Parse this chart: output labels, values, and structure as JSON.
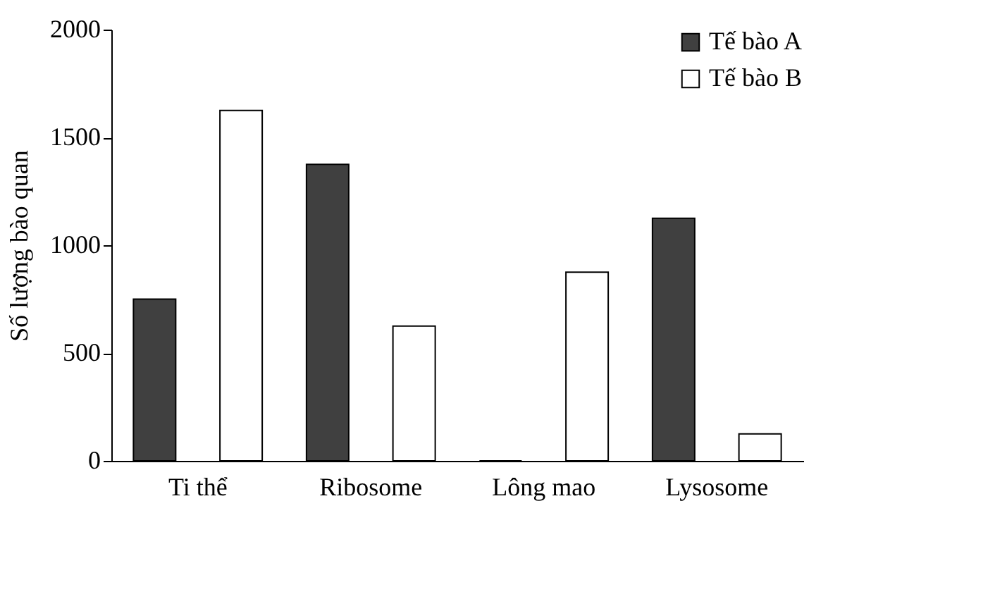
{
  "chart_data": {
    "type": "bar",
    "ylabel": "Số lượng bào quan",
    "categories": [
      "Ti thể",
      "Ribosome",
      "Lông mao",
      "Lysosome"
    ],
    "series": [
      {
        "name": "Tế bào A",
        "color": "#404040",
        "values": [
          750,
          1375,
          0,
          1125
        ]
      },
      {
        "name": "Tế bào B",
        "color": "#ffffff",
        "values": [
          1625,
          625,
          875,
          125
        ]
      }
    ],
    "ylim": [
      0,
      2000
    ],
    "yticks": [
      0,
      500,
      1000,
      1500,
      2000
    ],
    "grid": false,
    "legend": "top right"
  }
}
